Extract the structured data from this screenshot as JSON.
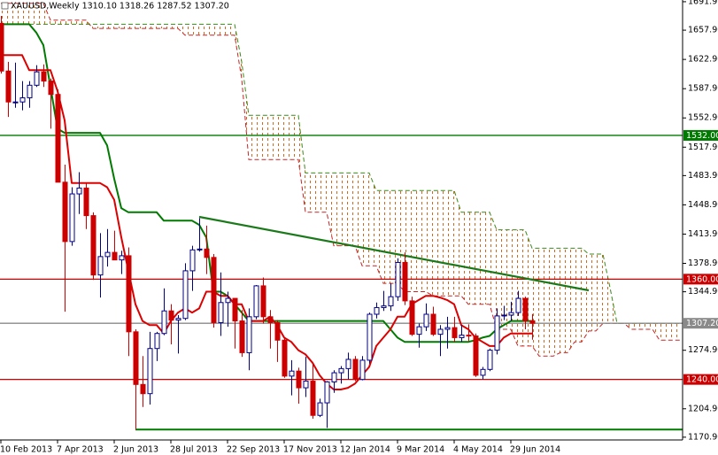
{
  "chart_data": {
    "type": "candlestick",
    "title": "XAUUSD,Weekly  1310.10 1318.26 1287.52 1307.20",
    "categories": [
      "10 Feb 2013",
      null,
      null,
      null,
      null,
      null,
      null,
      null,
      "7 Apr 2013",
      null,
      null,
      null,
      null,
      null,
      null,
      null,
      "2 Jun 2013",
      null,
      null,
      null,
      null,
      null,
      null,
      null,
      "28 Jul 2013",
      null,
      null,
      null,
      null,
      null,
      null,
      null,
      "22 Sep 2013",
      null,
      null,
      null,
      null,
      null,
      null,
      null,
      "17 Nov 2013",
      null,
      null,
      null,
      null,
      null,
      null,
      null,
      "12 Jan 2014",
      null,
      null,
      null,
      null,
      null,
      null,
      null,
      "9 Mar 2014",
      null,
      null,
      null,
      null,
      null,
      null,
      null,
      "4 May 2014",
      null,
      null,
      null,
      null,
      null,
      null,
      null,
      "29 Jun 2014",
      null,
      null,
      null,
      null,
      null,
      null,
      null,
      null,
      null,
      null,
      null,
      null,
      null,
      null,
      null,
      null,
      null,
      null,
      null,
      null,
      null,
      null,
      null,
      null
    ],
    "open": [
      1666,
      1609,
      1572,
      1572,
      1577,
      1592,
      1608,
      1597,
      1581,
      1476,
      1405,
      1462,
      1469,
      1436,
      1365,
      1387,
      1392,
      1383,
      1388,
      1297,
      1234,
      1223,
      1277,
      1295,
      1322,
      1311,
      1313,
      1370,
      1395,
      1396,
      1386,
      1308,
      1332,
      1337,
      1310,
      1272,
      1315,
      1352,
      1315,
      1308,
      1287,
      1244,
      1250,
      1230,
      1238,
      1197,
      1212,
      1237,
      1248,
      1253,
      1264,
      1240,
      1263,
      1318,
      1326,
      1328,
      1339,
      1380,
      1334,
      1294,
      1303,
      1318,
      1294,
      1300,
      1302,
      1290,
      1293,
      1292,
      1245,
      1252,
      1275,
      1316,
      1317,
      1320,
      1337,
      1310.1,
      null,
      null,
      null,
      null,
      null,
      null,
      null,
      null,
      null,
      null,
      null,
      null,
      null,
      null,
      null,
      null,
      null,
      null,
      null,
      null,
      null
    ],
    "high": [
      1675,
      1620,
      1619,
      1597,
      1597,
      1616,
      1617,
      1600,
      1587,
      1497,
      1470,
      1488,
      1475,
      1440,
      1415,
      1420,
      1418,
      1394,
      1398,
      1300,
      1268,
      1297,
      1297,
      1349,
      1330,
      1317,
      1379,
      1400,
      1433,
      1424,
      1390,
      1368,
      1345,
      1337,
      1323,
      1325,
      1353,
      1362,
      1323,
      1311,
      1290,
      1263,
      1254,
      1267,
      1259,
      1217,
      1238,
      1251,
      1256,
      1272,
      1268,
      1268,
      1320,
      1332,
      1346,
      1355,
      1385,
      1392,
      1339,
      1307,
      1331,
      1327,
      1305,
      1315,
      1315,
      1305,
      1306,
      1295,
      1255,
      1277,
      1325,
      1328,
      1333,
      1346,
      1339,
      1318.26,
      null,
      null,
      null,
      null,
      null,
      null,
      null,
      null,
      null,
      null,
      null,
      null,
      null,
      null,
      null,
      null,
      null,
      null,
      null,
      null,
      null
    ],
    "low": [
      1606,
      1554,
      1565,
      1562,
      1565,
      1590,
      1590,
      1540,
      1476,
      1321,
      1400,
      1438,
      1420,
      1359,
      1338,
      1375,
      1384,
      1366,
      1268,
      1180,
      1207,
      1210,
      1262,
      1293,
      1282,
      1271,
      1311,
      1346,
      1393,
      1366,
      1302,
      1292,
      1303,
      1277,
      1267,
      1251,
      1312,
      1307,
      1277,
      1261,
      1242,
      1221,
      1211,
      1219,
      1193,
      1195,
      1182,
      1224,
      1235,
      1240,
      1238,
      1239,
      1259,
      1313,
      1322,
      1322,
      1334,
      1329,
      1292,
      1278,
      1298,
      1292,
      1268,
      1277,
      1285,
      1285,
      1286,
      1243,
      1240,
      1250,
      1270,
      1311,
      1310,
      1316,
      1300,
      1287.52,
      null,
      null,
      null,
      null,
      null,
      null,
      null,
      null,
      null,
      null,
      null,
      null,
      null,
      null,
      null,
      null,
      null,
      null,
      null,
      null,
      null
    ],
    "close": [
      1609,
      1572,
      1572,
      1577,
      1592,
      1608,
      1597,
      1581,
      1476,
      1405,
      1462,
      1469,
      1436,
      1365,
      1387,
      1392,
      1383,
      1388,
      1297,
      1234,
      1223,
      1277,
      1295,
      1322,
      1311,
      1313,
      1370,
      1395,
      1396,
      1386,
      1308,
      1332,
      1337,
      1310,
      1272,
      1315,
      1352,
      1315,
      1308,
      1287,
      1244,
      1250,
      1230,
      1238,
      1197,
      1212,
      1237,
      1248,
      1253,
      1264,
      1240,
      1263,
      1318,
      1326,
      1328,
      1339,
      1380,
      1334,
      1294,
      1303,
      1318,
      1294,
      1300,
      1302,
      1290,
      1293,
      1292,
      1245,
      1252,
      1275,
      1316,
      1317,
      1320,
      1337,
      1310,
      1307.2,
      null,
      null,
      null,
      null,
      null,
      null,
      null,
      null,
      null,
      null,
      null,
      null,
      null,
      null,
      null,
      null,
      null,
      null,
      null,
      null,
      null
    ],
    "up_color": "#000080",
    "down_color": "#cc0000",
    "tenkan": {
      "color": "#dd0000",
      "values": [
        1628,
        1628,
        1628,
        1628,
        1610,
        1610,
        1610,
        1610,
        1585,
        1550,
        1475,
        1475,
        1475,
        1475,
        1475,
        1470,
        1455,
        1410,
        1370,
        1330,
        1310,
        1305,
        1305,
        1295,
        1310,
        1320,
        1325,
        1320,
        1325,
        1345,
        1345,
        1340,
        1340,
        1330,
        1330,
        1310,
        1310,
        1310,
        1315,
        1305,
        1290,
        1285,
        1275,
        1270,
        1260,
        1245,
        1235,
        1228,
        1228,
        1230,
        1235,
        1245,
        1255,
        1280,
        1290,
        1300,
        1315,
        1315,
        1330,
        1335,
        1340,
        1340,
        1338,
        1335,
        1330,
        1305,
        1300,
        1290,
        1285,
        1280,
        1280,
        1290,
        1295,
        1295,
        1295,
        1295,
        null,
        null,
        null,
        null,
        null,
        null,
        null,
        null,
        null,
        null,
        null,
        null,
        null,
        null,
        null,
        null,
        null,
        null,
        null,
        null,
        null
      ]
    },
    "kijun": {
      "color": "#007a00",
      "values": [
        1665,
        1665,
        1665,
        1665,
        1665,
        1655,
        1640,
        1590,
        1540,
        1535,
        1535,
        1535,
        1535,
        1535,
        1535,
        1520,
        1480,
        1445,
        1440,
        1440,
        1440,
        1440,
        1440,
        1430,
        1430,
        1430,
        1430,
        1430,
        1425,
        1410,
        1345,
        1345,
        1340,
        1330,
        1320,
        1310,
        1310,
        1310,
        1310,
        1310,
        1310,
        1310,
        1310,
        1310,
        1310,
        1310,
        1310,
        1310,
        1310,
        1310,
        1310,
        1310,
        1310,
        1310,
        1310,
        1300,
        1290,
        1285,
        1285,
        1285,
        1285,
        1285,
        1285,
        1285,
        1285,
        1285,
        1285,
        1287,
        1290,
        1292,
        1300,
        1305,
        1310,
        1310,
        1310,
        1310,
        null,
        null,
        null,
        null,
        null,
        null,
        null,
        null,
        null,
        null,
        null,
        null,
        null,
        null,
        null,
        null,
        null,
        null,
        null,
        null,
        null
      ]
    },
    "senkou_a": {
      "color": "#cc2222",
      "values": [
        1690,
        1690,
        1690,
        1690,
        1690,
        1690,
        1690,
        1670,
        1670,
        1670,
        1670,
        1670,
        1670,
        1660,
        1660,
        1660,
        1660,
        1660,
        1660,
        1660,
        1660,
        1660,
        1660,
        1660,
        1660,
        1660,
        1652,
        1652,
        1652,
        1652,
        1652,
        1652,
        1652,
        1652,
        1600,
        1503,
        1503,
        1503,
        1503,
        1503,
        1503,
        1503,
        1503,
        1440,
        1440,
        1440,
        1440,
        1400,
        1400,
        1400,
        1400,
        1376,
        1376,
        1376,
        1355,
        1355,
        1355,
        1345,
        1345,
        1345,
        1345,
        1340,
        1340,
        1340,
        1340,
        1340,
        1330,
        1330,
        1330,
        1330,
        1300,
        1300,
        1300,
        1280,
        1280,
        1280,
        1268,
        1268,
        1268,
        1272,
        1272,
        1285,
        1285,
        1298,
        1298,
        1307,
        1307,
        1307,
        1307,
        1300,
        1300,
        1300,
        1300,
        1287,
        1287,
        1287,
        1287
      ]
    },
    "senkou_b": {
      "color": "#3a8a1a",
      "values": [
        1665,
        1665,
        1665,
        1665,
        1665,
        1665,
        1665,
        1665,
        1665,
        1665,
        1665,
        1665,
        1665,
        1665,
        1665,
        1665,
        1665,
        1665,
        1665,
        1665,
        1665,
        1665,
        1665,
        1665,
        1665,
        1665,
        1665,
        1665,
        1665,
        1665,
        1665,
        1665,
        1665,
        1665,
        1620,
        1556,
        1556,
        1556,
        1556,
        1556,
        1556,
        1556,
        1556,
        1487,
        1487,
        1487,
        1487,
        1487,
        1487,
        1487,
        1487,
        1487,
        1487,
        1466,
        1466,
        1466,
        1466,
        1466,
        1466,
        1466,
        1466,
        1466,
        1466,
        1466,
        1466,
        1440,
        1440,
        1440,
        1440,
        1440,
        1419,
        1419,
        1419,
        1419,
        1419,
        1397,
        1397,
        1397,
        1397,
        1397,
        1397,
        1397,
        1397,
        1390,
        1390,
        1390,
        1350,
        1307,
        1307,
        1307,
        1307,
        1307,
        1307,
        1307,
        1307,
        1307,
        1307
      ]
    },
    "cloud_color": "#d2691e",
    "ylim": [
      1167.6,
      1694
    ],
    "yticks": [
      {
        "value": 1691.95,
        "label": "1691.95"
      },
      {
        "value": 1657.9,
        "label": "1657.90"
      },
      {
        "value": 1622.9,
        "label": "1622.90"
      },
      {
        "value": 1587.9,
        "label": "1587.90"
      },
      {
        "value": 1552.9,
        "label": "1552.90"
      },
      {
        "value": 1517.9,
        "label": "1517.90"
      },
      {
        "value": 1483.9,
        "label": "1483.90"
      },
      {
        "value": 1448.9,
        "label": "1448.90"
      },
      {
        "value": 1413.9,
        "label": "1413.90"
      },
      {
        "value": 1378.9,
        "label": "1378.90"
      },
      {
        "value": 1344.9,
        "label": "1344.90"
      },
      {
        "value": 1274.9,
        "label": "1274.90"
      },
      {
        "value": 1204.9,
        "label": "1204.90"
      },
      {
        "value": 1170.9,
        "label": "1170.90"
      }
    ],
    "price_lines": [
      {
        "value": 1532,
        "label": "1532.00",
        "color": "#007a00"
      },
      {
        "value": 1360,
        "label": "1360.00",
        "color": "#cc0000"
      },
      {
        "value": 1307.2,
        "label": "1307.20",
        "color": "#8a8a8a"
      },
      {
        "value": 1240,
        "label": "1240.00",
        "color": "#cc0000"
      },
      {
        "value": 1180,
        "color": "#007a00",
        "from": 19
      }
    ],
    "trendlines": [
      {
        "color": "#1a7a1a",
        "from": [
          28,
          1434.5
        ],
        "to": [
          83,
          1346.6
        ]
      }
    ]
  }
}
